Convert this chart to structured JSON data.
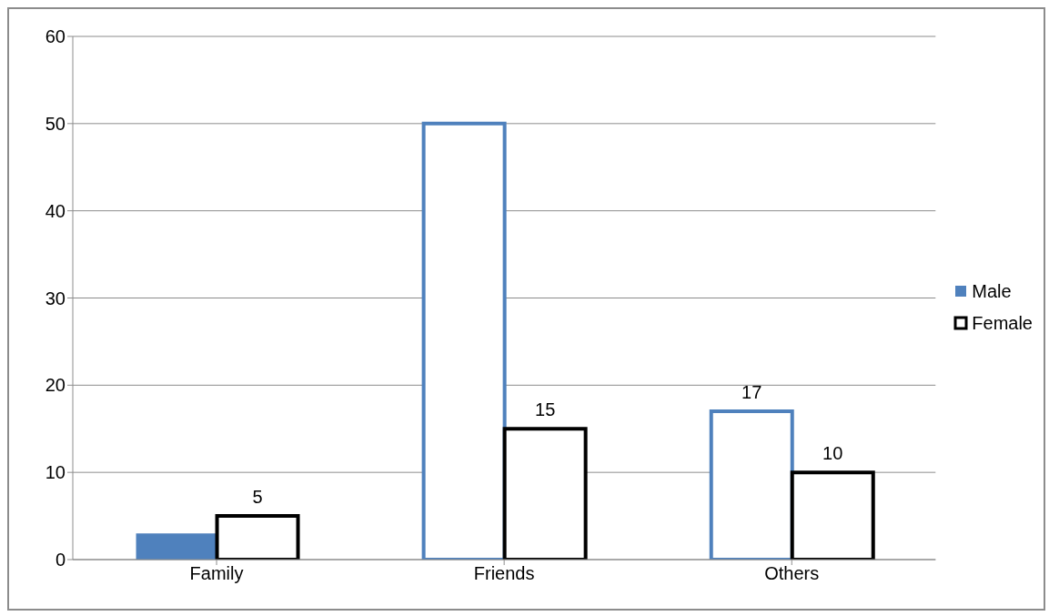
{
  "chart_data": {
    "type": "bar",
    "categories": [
      "Family",
      "Friends",
      "Others"
    ],
    "series": [
      {
        "name": "Male",
        "color": "#4f81bd",
        "colors": [
          "#4f81bd",
          "#ffffff",
          "#ffffff"
        ],
        "values": [
          3,
          50,
          17
        ],
        "value_labels": [
          null,
          null,
          "17"
        ]
      },
      {
        "name": "Female",
        "color": "#000000",
        "colors": [
          "#ffffff",
          "#ffffff",
          "#ffffff"
        ],
        "values": [
          5,
          15,
          10
        ],
        "value_labels": [
          "5",
          "15",
          "10"
        ]
      }
    ],
    "ylim": [
      0,
      60
    ],
    "yticks": [
      0,
      10,
      20,
      30,
      40,
      50,
      60
    ],
    "grid": "y",
    "legend": "right"
  }
}
